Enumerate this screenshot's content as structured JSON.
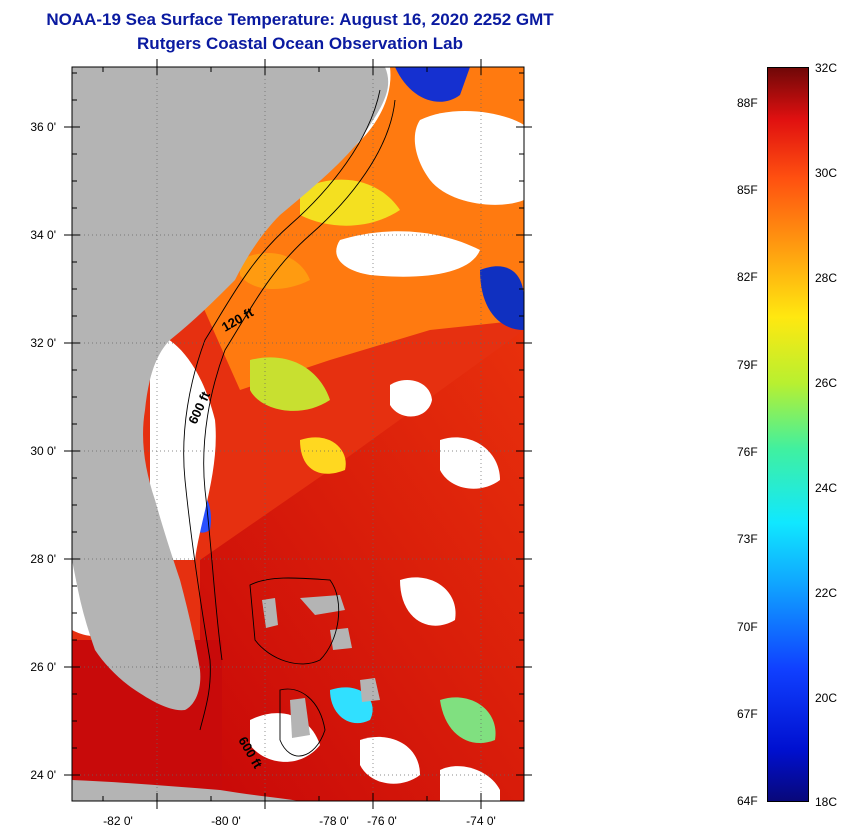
{
  "header": {
    "title": "NOAA-19 Sea Surface Temperature:  August 16, 2020 2252 GMT",
    "subtitle": "Rutgers Coastal Ocean Observation Lab"
  },
  "map": {
    "y_ticks": [
      "36 0'",
      "34 0'",
      "32 0'",
      "30 0'",
      "28 0'",
      "26 0'",
      "24 0'"
    ],
    "x_ticks": [
      "-82 0'",
      "-80 0'",
      "-78 0'",
      "-76 0'",
      "-74 0'"
    ],
    "contour_labels": [
      "120 ft",
      "600 ft",
      "600 ft"
    ],
    "colors": {
      "land": "#b4b4b4",
      "cloud": "#ffffff",
      "warm_water": "#e0180f",
      "hot_water": "#c00808"
    }
  },
  "colorbar": {
    "celsius": [
      "32C",
      "30C",
      "28C",
      "26C",
      "24C",
      "22C",
      "20C",
      "18C"
    ],
    "fahrenheit": [
      "88F",
      "85F",
      "82F",
      "79F",
      "76F",
      "73F",
      "70F",
      "67F",
      "64F"
    ],
    "min_c": 18,
    "max_c": 32
  }
}
